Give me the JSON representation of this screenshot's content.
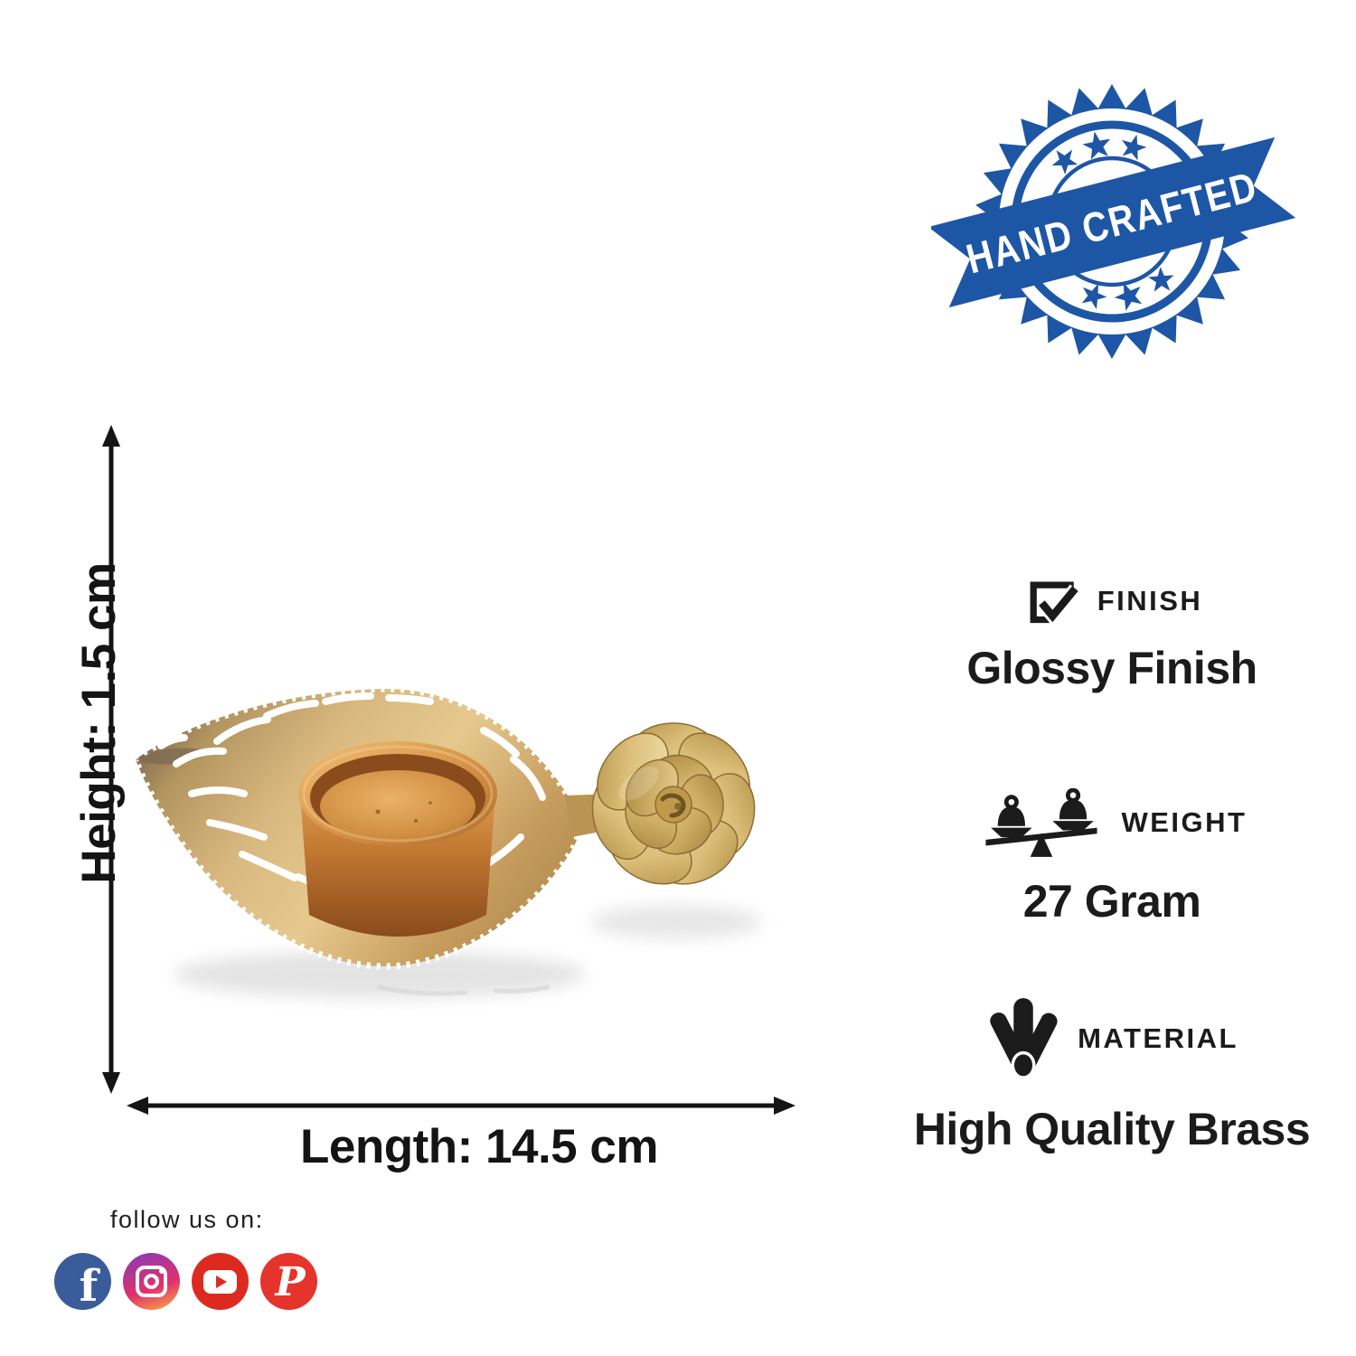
{
  "stamp": {
    "label": "HAND CRAFTED"
  },
  "product": {
    "alt": "Gold leaf-shaped tealight candle holder with metal rose"
  },
  "dimensions": {
    "height": {
      "label": "Height: 1.5 cm"
    },
    "length": {
      "label": "Length: 14.5 cm"
    }
  },
  "features": {
    "finish": {
      "label": "FINISH",
      "value": "Glossy Finish",
      "icon": "checkbox-check-icon"
    },
    "weight": {
      "label": "WEIGHT",
      "value": "27 Gram",
      "icon": "balance-scale-icon"
    },
    "material": {
      "label": "MATERIAL",
      "value": "High Quality Brass",
      "icon": "metal-rods-icon"
    }
  },
  "social": {
    "heading": "follow us on:",
    "platforms": [
      "facebook",
      "instagram",
      "youtube",
      "pinterest"
    ]
  },
  "colors": {
    "stamp-blue": "#1e56a6",
    "text-dark": "#1b1b1b",
    "dim-black": "#141414",
    "facebook-blue": "#3b5c9b",
    "instagram-purple": "#8a3ab9",
    "instagram-pink": "#e1306c",
    "instagram-orange": "#f5a443",
    "youtube-red": "#dd2a20",
    "pinterest-red": "#e5342b",
    "brass-gold": "#d4a35c",
    "copper": "#c27a36"
  }
}
